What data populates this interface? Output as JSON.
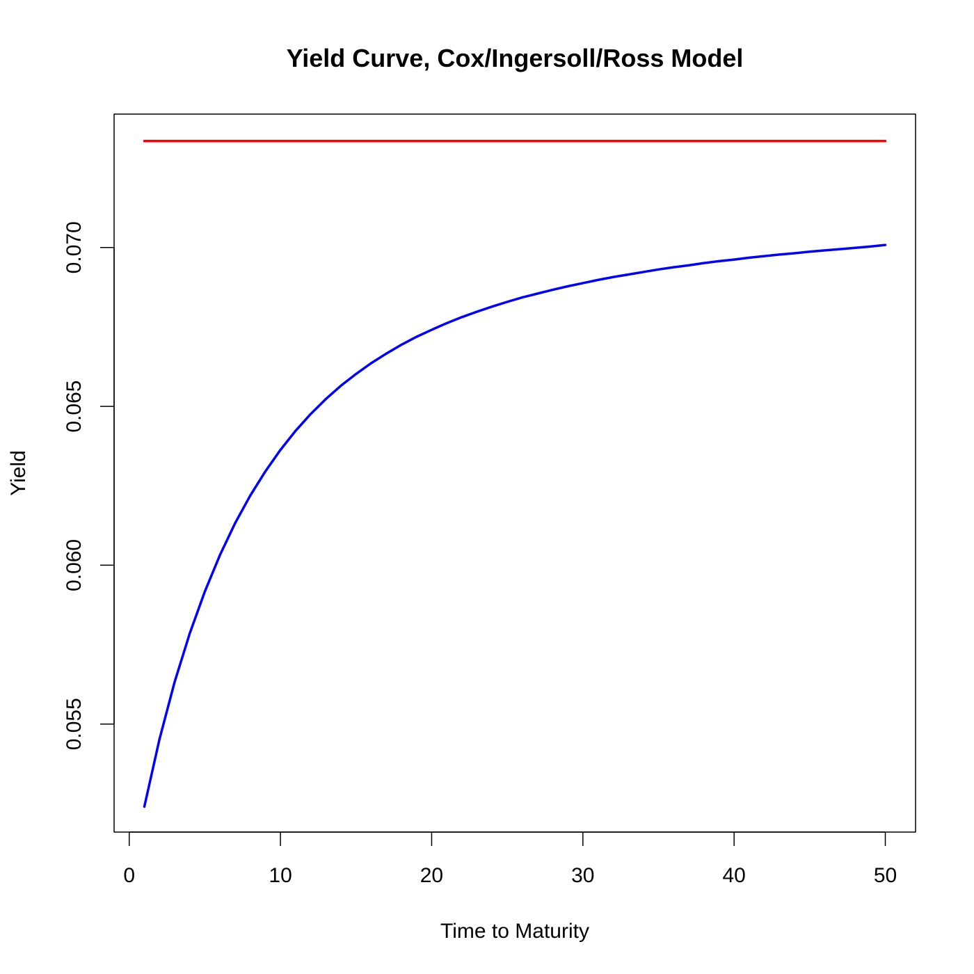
{
  "chart_data": {
    "type": "line",
    "title": "Yield Curve, Cox/Ingersoll/Ross Model",
    "xlabel": "Time to Maturity",
    "ylabel": "Yield",
    "xlim": [
      -1,
      52
    ],
    "ylim": [
      0.0516,
      0.0742
    ],
    "x_ticks": [
      0,
      10,
      20,
      30,
      40,
      50
    ],
    "x_tick_labels": [
      "0",
      "10",
      "20",
      "30",
      "40",
      "50"
    ],
    "y_ticks": [
      0.055,
      0.06,
      0.065,
      0.07
    ],
    "y_tick_labels": [
      "0.055",
      "0.060",
      "0.065",
      "0.070"
    ],
    "grid": false,
    "legend": "none",
    "series": [
      {
        "color": "#ff0000",
        "x": [
          1,
          50
        ],
        "y": [
          0.07335,
          0.07335
        ]
      },
      {
        "color": "#0000ff",
        "x": [
          1,
          2,
          3,
          4,
          5,
          6,
          7,
          8,
          9,
          10,
          11,
          12,
          13,
          14,
          15,
          16,
          17,
          18,
          19,
          20,
          21,
          22,
          23,
          24,
          25,
          26,
          27,
          28,
          29,
          30,
          31,
          32,
          33,
          34,
          35,
          36,
          37,
          38,
          39,
          40,
          41,
          42,
          43,
          44,
          45,
          46,
          47,
          48,
          49,
          50
        ],
        "y": [
          0.0524,
          0.05452,
          0.05632,
          0.05785,
          0.05917,
          0.06032,
          0.06132,
          0.06219,
          0.06295,
          0.06363,
          0.06423,
          0.06476,
          0.06523,
          0.06565,
          0.06602,
          0.06636,
          0.06666,
          0.06694,
          0.06719,
          0.06741,
          0.06762,
          0.06781,
          0.06798,
          0.06814,
          0.06829,
          0.06843,
          0.06855,
          0.06867,
          0.06878,
          0.06888,
          0.06898,
          0.06907,
          0.06915,
          0.06923,
          0.06931,
          0.06938,
          0.06944,
          0.06951,
          0.06957,
          0.06962,
          0.06968,
          0.06973,
          0.06978,
          0.06982,
          0.06987,
          0.06991,
          0.06995,
          0.06999,
          0.07003,
          0.07008
        ]
      }
    ]
  }
}
